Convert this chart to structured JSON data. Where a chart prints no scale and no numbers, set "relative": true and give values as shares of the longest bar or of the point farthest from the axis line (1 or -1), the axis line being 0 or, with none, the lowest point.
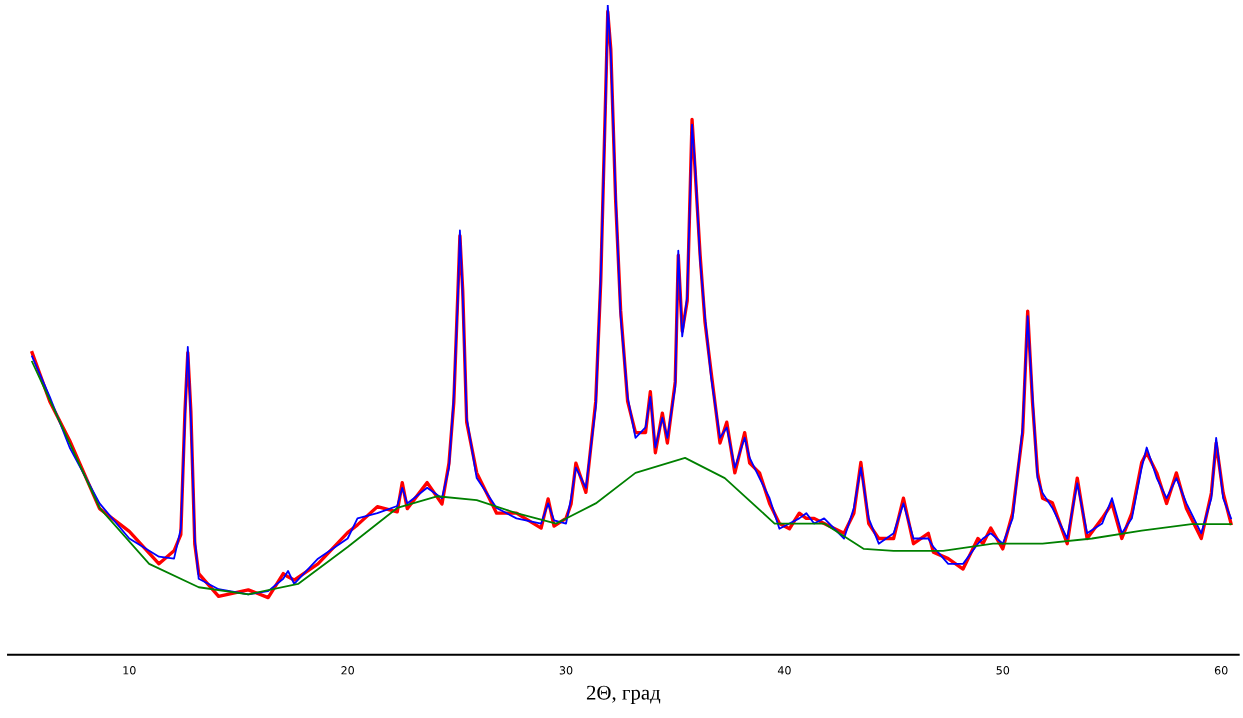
{
  "chart_data": {
    "type": "line",
    "relative": true,
    "xlabel": "2Θ, град",
    "xlim": [
      4.45,
      60.8
    ],
    "xticks": [
      10,
      20,
      30,
      40,
      50,
      60
    ],
    "tick_labels": "x",
    "grid": false,
    "legend": false,
    "x": [
      5.55,
      6.36,
      7.27,
      8.64,
      10.0,
      11.36,
      12.05,
      12.36,
      12.55,
      12.68,
      12.82,
      13.0,
      13.18,
      14.09,
      15.45,
      16.36,
      17.05,
      17.27,
      17.55,
      18.64,
      20.0,
      20.45,
      21.36,
      22.27,
      22.5,
      22.73,
      23.64,
      24.32,
      24.64,
      24.86,
      25.05,
      25.14,
      25.27,
      25.45,
      25.91,
      26.82,
      27.73,
      28.86,
      29.18,
      29.45,
      30.0,
      30.23,
      30.45,
      30.91,
      31.36,
      31.59,
      31.82,
      31.91,
      32.05,
      32.27,
      32.5,
      32.82,
      33.18,
      33.64,
      33.86,
      34.09,
      34.41,
      34.64,
      35.0,
      35.14,
      35.32,
      35.55,
      35.77,
      35.91,
      36.14,
      36.36,
      36.64,
      37.05,
      37.36,
      37.73,
      38.18,
      38.41,
      38.86,
      39.32,
      39.77,
      40.23,
      40.68,
      41.0,
      41.36,
      41.82,
      42.73,
      43.18,
      43.5,
      43.86,
      44.32,
      45.0,
      45.45,
      45.91,
      46.59,
      46.82,
      47.5,
      48.18,
      48.86,
      49.09,
      49.45,
      50.0,
      50.45,
      50.91,
      51.14,
      51.36,
      51.59,
      51.82,
      52.27,
      52.95,
      53.41,
      53.86,
      54.55,
      55.0,
      55.45,
      55.91,
      56.36,
      56.59,
      57.05,
      57.5,
      57.95,
      58.41,
      59.09,
      59.55,
      59.77,
      60.09,
      60.45
    ],
    "series": [
      {
        "color": "#ff0000",
        "values": [
          0.465,
          0.39,
          0.33,
          0.225,
          0.19,
          0.14,
          0.16,
          0.185,
          0.375,
          0.465,
          0.375,
          0.17,
          0.125,
          0.09,
          0.1,
          0.088,
          0.125,
          0.12,
          0.115,
          0.14,
          0.188,
          0.2,
          0.228,
          0.22,
          0.265,
          0.225,
          0.265,
          0.232,
          0.295,
          0.388,
          0.56,
          0.645,
          0.56,
          0.358,
          0.28,
          0.218,
          0.218,
          0.195,
          0.24,
          0.198,
          0.21,
          0.232,
          0.295,
          0.25,
          0.39,
          0.575,
          0.87,
          0.99,
          0.932,
          0.7,
          0.53,
          0.39,
          0.342,
          0.342,
          0.405,
          0.311,
          0.372,
          0.326,
          0.42,
          0.615,
          0.498,
          0.545,
          0.824,
          0.746,
          0.615,
          0.513,
          0.436,
          0.326,
          0.358,
          0.28,
          0.342,
          0.295,
          0.28,
          0.233,
          0.202,
          0.194,
          0.218,
          0.21,
          0.21,
          0.202,
          0.187,
          0.218,
          0.296,
          0.202,
          0.179,
          0.179,
          0.241,
          0.171,
          0.187,
          0.158,
          0.148,
          0.132,
          0.179,
          0.171,
          0.195,
          0.163,
          0.218,
          0.342,
          0.529,
          0.389,
          0.28,
          0.241,
          0.234,
          0.171,
          0.272,
          0.179,
          0.21,
          0.233,
          0.179,
          0.218,
          0.296,
          0.311,
          0.28,
          0.233,
          0.28,
          0.225,
          0.179,
          0.249,
          0.326,
          0.249,
          0.202
        ]
      },
      {
        "color": "#0000ff",
        "values": [
          0.459,
          0.397,
          0.319,
          0.233,
          0.179,
          0.151,
          0.148,
          0.194,
          0.365,
          0.474,
          0.365,
          0.179,
          0.117,
          0.101,
          0.093,
          0.098,
          0.117,
          0.129,
          0.109,
          0.148,
          0.179,
          0.21,
          0.218,
          0.229,
          0.257,
          0.233,
          0.257,
          0.241,
          0.288,
          0.397,
          0.552,
          0.653,
          0.552,
          0.365,
          0.272,
          0.226,
          0.21,
          0.202,
          0.233,
          0.207,
          0.202,
          0.241,
          0.288,
          0.257,
          0.381,
          0.583,
          0.863,
          1,
          0.925,
          0.708,
          0.521,
          0.397,
          0.334,
          0.35,
          0.397,
          0.319,
          0.365,
          0.334,
          0.412,
          0.622,
          0.49,
          0.552,
          0.816,
          0.754,
          0.607,
          0.521,
          0.428,
          0.334,
          0.35,
          0.288,
          0.334,
          0.303,
          0.272,
          0.241,
          0.194,
          0.202,
          0.21,
          0.218,
          0.202,
          0.21,
          0.179,
          0.226,
          0.288,
          0.21,
          0.171,
          0.187,
          0.233,
          0.179,
          0.179,
          0.166,
          0.14,
          0.14,
          0.171,
          0.179,
          0.187,
          0.171,
          0.21,
          0.35,
          0.521,
          0.397,
          0.272,
          0.249,
          0.226,
          0.179,
          0.264,
          0.187,
          0.202,
          0.241,
          0.187,
          0.21,
          0.288,
          0.319,
          0.272,
          0.241,
          0.272,
          0.233,
          0.187,
          0.241,
          0.334,
          0.241,
          0.21
        ]
      },
      {
        "color": "#008000",
        "x": [
          5.55,
          8.64,
          10.91,
          13.18,
          15.45,
          17.73,
          20.0,
          22.27,
          24.09,
          25.91,
          27.73,
          29.55,
          31.36,
          33.18,
          35.45,
          37.27,
          39.55,
          41.82,
          43.64,
          45.0,
          47.27,
          49.55,
          51.82,
          54.09,
          56.36,
          58.64,
          60.45
        ],
        "values": [
          0.451,
          0.226,
          0.14,
          0.104,
          0.093,
          0.109,
          0.166,
          0.226,
          0.244,
          0.238,
          0.218,
          0.202,
          0.233,
          0.28,
          0.303,
          0.272,
          0.202,
          0.202,
          0.163,
          0.16,
          0.16,
          0.171,
          0.171,
          0.179,
          0.191,
          0.201,
          0.201
        ]
      }
    ]
  }
}
